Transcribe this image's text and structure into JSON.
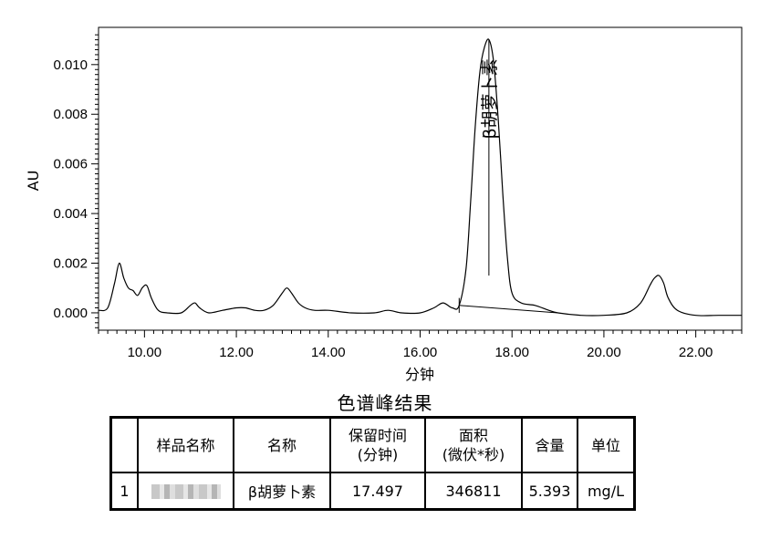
{
  "chart_data": {
    "type": "line",
    "xlabel": "分钟",
    "ylabel": "AU",
    "xlim": [
      9.0,
      23.0
    ],
    "ylim": [
      -0.0007,
      0.0115
    ],
    "x_ticks": [
      "10.00",
      "12.00",
      "14.00",
      "16.00",
      "18.00",
      "20.00",
      "22.00"
    ],
    "y_ticks": [
      "0.000",
      "0.002",
      "0.004",
      "0.006",
      "0.008",
      "0.010"
    ],
    "annotations": [
      {
        "text": "β胡萝卜素",
        "x": 17.497
      }
    ],
    "series": [
      {
        "color": "#000000",
        "x": [
          9.0,
          9.2,
          9.35,
          9.45,
          9.55,
          9.65,
          9.75,
          9.85,
          9.95,
          10.05,
          10.15,
          10.3,
          10.5,
          10.8,
          11.0,
          11.1,
          11.2,
          11.4,
          11.7,
          12.0,
          12.2,
          12.4,
          12.6,
          12.8,
          13.0,
          13.1,
          13.2,
          13.35,
          13.5,
          13.7,
          14.0,
          14.5,
          15.0,
          15.3,
          15.6,
          16.0,
          16.3,
          16.5,
          16.7,
          16.85,
          17.0,
          17.1,
          17.2,
          17.3,
          17.4,
          17.5,
          17.6,
          17.7,
          17.8,
          17.9,
          18.0,
          18.2,
          18.5,
          18.8,
          19.0,
          19.5,
          20.0,
          20.5,
          20.8,
          21.0,
          21.1,
          21.2,
          21.3,
          21.4,
          21.6,
          22.0,
          22.5,
          23.0
        ],
        "values": [
          0.0001,
          0.0002,
          0.0012,
          0.002,
          0.0014,
          0.001,
          0.0009,
          0.0007,
          0.001,
          0.0011,
          0.0006,
          0.0001,
          0.0,
          0.0,
          0.0003,
          0.0004,
          0.0002,
          0.0,
          0.0001,
          0.0002,
          0.0002,
          0.0001,
          0.0001,
          0.0003,
          0.0008,
          0.001,
          0.0008,
          0.0004,
          0.0002,
          0.0001,
          0.0001,
          0.0,
          0.0,
          0.0001,
          0.0,
          0.0,
          0.0002,
          0.0004,
          0.0002,
          0.0003,
          0.0018,
          0.0045,
          0.0075,
          0.0097,
          0.0107,
          0.011,
          0.0101,
          0.0078,
          0.0048,
          0.0022,
          0.0008,
          0.0004,
          0.0003,
          0.0001,
          0.0,
          -0.0001,
          -0.0001,
          0.0,
          0.0004,
          0.0011,
          0.0014,
          0.0015,
          0.0012,
          0.0006,
          0.0001,
          -0.0001,
          -0.0001,
          -0.0001
        ]
      }
    ]
  },
  "results": {
    "title": "色谱峰结果",
    "headers": {
      "index": "",
      "sample_name": "样品名称",
      "name": "名称",
      "retention_line1": "保留时间",
      "retention_line2": "(分钟)",
      "area_line1": "面积",
      "area_line2": "(微伏*秒)",
      "content": "含量",
      "unit": "单位"
    },
    "row": {
      "index": "1",
      "name": "β胡萝卜素",
      "retention_time": "17.497",
      "area": "346811",
      "content": "5.393",
      "unit": "mg/L"
    }
  }
}
